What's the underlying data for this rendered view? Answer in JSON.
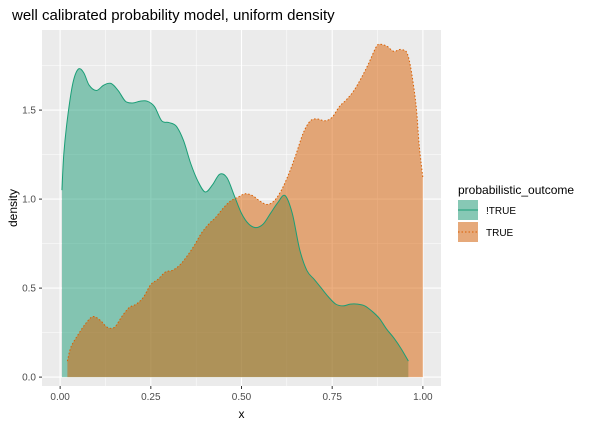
{
  "chart_data": {
    "type": "area",
    "title": "well calibrated probability model, uniform density",
    "xlabel": "x",
    "ylabel": "density",
    "xlim": [
      -0.05,
      1.05
    ],
    "ylim": [
      -0.05,
      1.95
    ],
    "x_ticks": [
      0.0,
      0.25,
      0.5,
      0.75,
      1.0
    ],
    "x_tick_labels": [
      "0.00",
      "0.25",
      "0.50",
      "0.75",
      "1.00"
    ],
    "y_ticks": [
      0.0,
      0.5,
      1.0,
      1.5
    ],
    "y_tick_labels": [
      "0.0",
      "0.5",
      "1.0",
      "1.5"
    ],
    "grid": true,
    "legend": {
      "title": "probabilistic_outcome",
      "position": "right"
    },
    "series": [
      {
        "name": "!TRUE",
        "fill": "#1b9e77",
        "line": "#1b9e77",
        "dash": "solid",
        "points": [
          [
            0.005,
            1.05
          ],
          [
            0.01,
            1.25
          ],
          [
            0.02,
            1.45
          ],
          [
            0.035,
            1.65
          ],
          [
            0.05,
            1.73
          ],
          [
            0.065,
            1.71
          ],
          [
            0.08,
            1.64
          ],
          [
            0.1,
            1.61
          ],
          [
            0.12,
            1.64
          ],
          [
            0.14,
            1.65
          ],
          [
            0.16,
            1.61
          ],
          [
            0.18,
            1.55
          ],
          [
            0.2,
            1.54
          ],
          [
            0.22,
            1.55
          ],
          [
            0.24,
            1.55
          ],
          [
            0.26,
            1.52
          ],
          [
            0.28,
            1.44
          ],
          [
            0.3,
            1.43
          ],
          [
            0.32,
            1.41
          ],
          [
            0.34,
            1.33
          ],
          [
            0.36,
            1.2
          ],
          [
            0.38,
            1.1
          ],
          [
            0.4,
            1.04
          ],
          [
            0.42,
            1.08
          ],
          [
            0.44,
            1.14
          ],
          [
            0.46,
            1.12
          ],
          [
            0.48,
            1.02
          ],
          [
            0.5,
            0.92
          ],
          [
            0.52,
            0.86
          ],
          [
            0.54,
            0.84
          ],
          [
            0.56,
            0.86
          ],
          [
            0.58,
            0.92
          ],
          [
            0.6,
            0.98
          ],
          [
            0.62,
            1.02
          ],
          [
            0.64,
            0.92
          ],
          [
            0.66,
            0.72
          ],
          [
            0.68,
            0.6
          ],
          [
            0.7,
            0.55
          ],
          [
            0.72,
            0.5
          ],
          [
            0.74,
            0.45
          ],
          [
            0.76,
            0.41
          ],
          [
            0.78,
            0.4
          ],
          [
            0.8,
            0.41
          ],
          [
            0.82,
            0.41
          ],
          [
            0.84,
            0.4
          ],
          [
            0.86,
            0.37
          ],
          [
            0.88,
            0.33
          ],
          [
            0.9,
            0.27
          ],
          [
            0.92,
            0.22
          ],
          [
            0.94,
            0.16
          ],
          [
            0.96,
            0.09
          ]
        ]
      },
      {
        "name": "TRUE",
        "fill": "#d95f02",
        "line": "#d95f02",
        "dash": "dotted",
        "points": [
          [
            0.02,
            0.09
          ],
          [
            0.03,
            0.17
          ],
          [
            0.05,
            0.24
          ],
          [
            0.07,
            0.3
          ],
          [
            0.09,
            0.34
          ],
          [
            0.11,
            0.32
          ],
          [
            0.13,
            0.28
          ],
          [
            0.15,
            0.28
          ],
          [
            0.17,
            0.34
          ],
          [
            0.19,
            0.39
          ],
          [
            0.21,
            0.41
          ],
          [
            0.23,
            0.45
          ],
          [
            0.25,
            0.52
          ],
          [
            0.27,
            0.55
          ],
          [
            0.29,
            0.59
          ],
          [
            0.31,
            0.6
          ],
          [
            0.33,
            0.63
          ],
          [
            0.35,
            0.68
          ],
          [
            0.37,
            0.74
          ],
          [
            0.39,
            0.81
          ],
          [
            0.41,
            0.86
          ],
          [
            0.43,
            0.9
          ],
          [
            0.45,
            0.95
          ],
          [
            0.47,
            0.99
          ],
          [
            0.49,
            1.01
          ],
          [
            0.51,
            1.03
          ],
          [
            0.53,
            1.02
          ],
          [
            0.55,
            0.99
          ],
          [
            0.57,
            0.97
          ],
          [
            0.59,
            0.99
          ],
          [
            0.61,
            1.05
          ],
          [
            0.63,
            1.14
          ],
          [
            0.65,
            1.25
          ],
          [
            0.67,
            1.37
          ],
          [
            0.69,
            1.44
          ],
          [
            0.71,
            1.45
          ],
          [
            0.73,
            1.44
          ],
          [
            0.75,
            1.46
          ],
          [
            0.77,
            1.52
          ],
          [
            0.79,
            1.56
          ],
          [
            0.81,
            1.61
          ],
          [
            0.83,
            1.68
          ],
          [
            0.85,
            1.76
          ],
          [
            0.87,
            1.85
          ],
          [
            0.88,
            1.87
          ],
          [
            0.9,
            1.86
          ],
          [
            0.92,
            1.83
          ],
          [
            0.94,
            1.84
          ],
          [
            0.96,
            1.8
          ],
          [
            0.98,
            1.55
          ],
          [
            0.99,
            1.3
          ],
          [
            1.0,
            1.12
          ]
        ]
      }
    ]
  }
}
